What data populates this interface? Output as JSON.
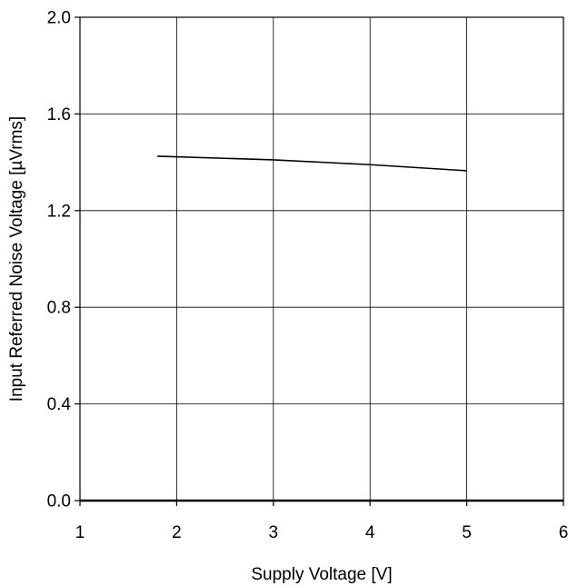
{
  "chart_data": {
    "type": "line",
    "title": "",
    "xlabel": "Supply Voltage [V]",
    "ylabel": "Input Referred Noise Voltage [µVrms]",
    "xlim": [
      1,
      6
    ],
    "ylim": [
      0.0,
      2.0
    ],
    "xticks": [
      1,
      2,
      3,
      4,
      5,
      6
    ],
    "yticks": [
      0.0,
      0.4,
      0.8,
      1.2,
      1.6,
      2.0
    ],
    "xtick_labels": [
      "1",
      "2",
      "3",
      "4",
      "5",
      "6"
    ],
    "ytick_labels": [
      "0.0",
      "0.4",
      "0.8",
      "1.2",
      "1.6",
      "2.0"
    ],
    "grid": true,
    "series": [
      {
        "x": [
          1.8,
          3.0,
          4.0,
          5.0
        ],
        "y": [
          1.425,
          1.41,
          1.39,
          1.365
        ],
        "color": "#000000"
      }
    ]
  }
}
